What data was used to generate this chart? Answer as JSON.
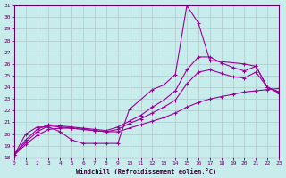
{
  "xlabel": "Windchill (Refroidissement éolien,°C)",
  "xlim": [
    0,
    23
  ],
  "ylim": [
    18,
    31
  ],
  "yticks": [
    18,
    19,
    20,
    21,
    22,
    23,
    24,
    25,
    26,
    27,
    28,
    29,
    30,
    31
  ],
  "xticks": [
    0,
    1,
    2,
    3,
    4,
    5,
    6,
    7,
    8,
    9,
    10,
    11,
    12,
    13,
    14,
    15,
    16,
    17,
    18,
    19,
    20,
    21,
    22,
    23
  ],
  "background_color": "#c8ecec",
  "line_color": "#990099",
  "curve1_x": [
    0,
    1,
    2,
    3,
    4,
    5,
    6,
    7,
    8,
    9,
    10,
    12,
    13,
    14,
    15,
    16,
    17,
    20,
    21,
    22,
    23
  ],
  "curve1_y": [
    18.2,
    20.0,
    20.6,
    20.6,
    20.2,
    19.5,
    19.2,
    19.2,
    19.2,
    19.2,
    22.1,
    23.8,
    24.2,
    25.1,
    31.0,
    29.5,
    26.3,
    26.0,
    25.8,
    24.0,
    23.6
  ],
  "curve2_x": [
    0,
    1,
    2,
    3,
    4,
    5,
    6,
    7,
    8,
    9,
    10,
    11,
    12,
    13,
    14,
    15,
    16,
    17,
    18,
    19,
    20,
    21,
    22,
    23
  ],
  "curve2_y": [
    18.2,
    19.1,
    19.9,
    20.4,
    20.5,
    20.5,
    20.4,
    20.3,
    20.2,
    20.2,
    20.5,
    20.8,
    21.1,
    21.4,
    21.8,
    22.3,
    22.7,
    23.0,
    23.2,
    23.4,
    23.6,
    23.7,
    23.8,
    23.9
  ],
  "curve3_x": [
    0,
    1,
    2,
    3,
    4,
    5,
    6,
    7,
    8,
    9,
    10,
    11,
    12,
    13,
    14,
    15,
    16,
    17,
    18,
    19,
    20,
    21,
    22,
    23
  ],
  "curve3_y": [
    18.2,
    19.3,
    20.2,
    20.7,
    20.6,
    20.5,
    20.4,
    20.3,
    20.2,
    20.4,
    20.9,
    21.3,
    21.8,
    22.3,
    22.9,
    24.3,
    25.3,
    25.5,
    25.2,
    24.9,
    24.8,
    25.3,
    24.0,
    23.6
  ],
  "curve4_x": [
    0,
    1,
    2,
    3,
    4,
    5,
    6,
    7,
    8,
    9,
    10,
    11,
    12,
    13,
    14,
    15,
    16,
    17,
    18,
    19,
    20,
    21,
    22,
    23
  ],
  "curve4_y": [
    18.2,
    19.5,
    20.4,
    20.8,
    20.7,
    20.6,
    20.5,
    20.4,
    20.3,
    20.6,
    21.1,
    21.6,
    22.3,
    22.9,
    23.7,
    25.5,
    26.6,
    26.6,
    26.1,
    25.7,
    25.4,
    25.8,
    24.0,
    23.5
  ]
}
